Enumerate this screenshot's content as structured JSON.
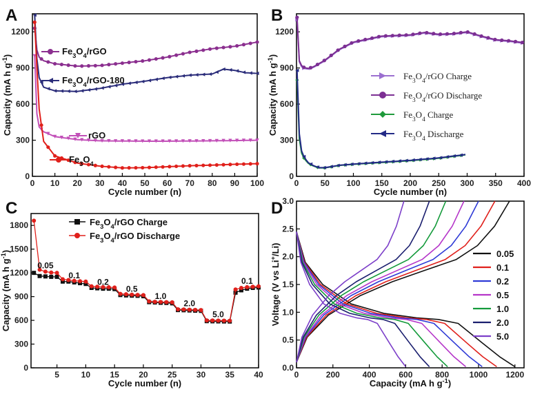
{
  "chart_data": [
    {
      "panel": "A",
      "type": "line",
      "xlabel": "Cycle number (n)",
      "ylabel": "Capacity (mA h g⁻¹)",
      "xlim": [
        0,
        100
      ],
      "ylim": [
        0,
        1350
      ],
      "xticks": [
        0,
        10,
        20,
        30,
        40,
        50,
        60,
        70,
        80,
        90,
        100
      ],
      "yticks": [
        0,
        300,
        600,
        900,
        1200
      ],
      "legend_placement": "inline labels",
      "series": [
        {
          "name": "Fe3O4/rGO",
          "color": "#8b2f8f",
          "marker": "circle",
          "points": [
            [
              1,
              1230
            ],
            [
              2,
              1050
            ],
            [
              3,
              990
            ],
            [
              5,
              960
            ],
            [
              10,
              935
            ],
            [
              20,
              915
            ],
            [
              30,
              920
            ],
            [
              40,
              940
            ],
            [
              50,
              960
            ],
            [
              60,
              990
            ],
            [
              70,
              1030
            ],
            [
              80,
              1060
            ],
            [
              90,
              1080
            ],
            [
              100,
              1115
            ]
          ]
        },
        {
          "name": "Fe3O4/rGO-180",
          "color": "#2b2d7a",
          "marker": "triangle-left",
          "points": [
            [
              1,
              1340
            ],
            [
              2,
              980
            ],
            [
              3,
              820
            ],
            [
              5,
              740
            ],
            [
              10,
              710
            ],
            [
              20,
              705
            ],
            [
              30,
              730
            ],
            [
              40,
              765
            ],
            [
              50,
              790
            ],
            [
              60,
              820
            ],
            [
              70,
              840
            ],
            [
              80,
              850
            ],
            [
              85,
              890
            ],
            [
              90,
              880
            ],
            [
              95,
              860
            ],
            [
              100,
              855
            ]
          ]
        },
        {
          "name": "rGO",
          "color": "#c24fb8",
          "marker": "triangle-down",
          "points": [
            [
              1,
              1000
            ],
            [
              2,
              520
            ],
            [
              3,
              410
            ],
            [
              5,
              370
            ],
            [
              10,
              330
            ],
            [
              20,
              305
            ],
            [
              30,
              295
            ],
            [
              40,
              293
            ],
            [
              50,
              292
            ],
            [
              60,
              292
            ],
            [
              70,
              293
            ],
            [
              80,
              295
            ],
            [
              90,
              297
            ],
            [
              100,
              300
            ]
          ]
        },
        {
          "name": "Fe3O4",
          "color": "#e0201b",
          "marker": "circle",
          "points": [
            [
              1,
              1280
            ],
            [
              2,
              900
            ],
            [
              3,
              560
            ],
            [
              5,
              290
            ],
            [
              10,
              170
            ],
            [
              20,
              110
            ],
            [
              30,
              85
            ],
            [
              40,
              70
            ],
            [
              50,
              72
            ],
            [
              60,
              80
            ],
            [
              70,
              88
            ],
            [
              80,
              93
            ],
            [
              90,
              100
            ],
            [
              100,
              105
            ]
          ]
        }
      ]
    },
    {
      "panel": "B",
      "type": "line",
      "xlabel": "Cycle number (n)",
      "ylabel": "Capacity (mA h g⁻¹)",
      "xlim": [
        0,
        400
      ],
      "ylim": [
        0,
        1350
      ],
      "xticks": [
        0,
        50,
        100,
        150,
        200,
        250,
        300,
        350,
        400
      ],
      "yticks": [
        0,
        300,
        600,
        900,
        1200
      ],
      "legend_placement": "center-right",
      "series": [
        {
          "name": "Fe3O4/rGO Charge",
          "color": "#9b6fd0",
          "marker": "triangle-right",
          "points": [
            [
              1,
              1300
            ],
            [
              5,
              950
            ],
            [
              10,
              900
            ],
            [
              20,
              890
            ],
            [
              30,
              905
            ],
            [
              50,
              960
            ],
            [
              75,
              1050
            ],
            [
              100,
              1110
            ],
            [
              130,
              1140
            ],
            [
              150,
              1160
            ],
            [
              175,
              1165
            ],
            [
              200,
              1170
            ],
            [
              225,
              1190
            ],
            [
              250,
              1175
            ],
            [
              275,
              1180
            ],
            [
              300,
              1195
            ],
            [
              325,
              1160
            ],
            [
              350,
              1130
            ],
            [
              375,
              1120
            ],
            [
              400,
              1105
            ]
          ]
        },
        {
          "name": "Fe3O4/rGO Discharge",
          "color": "#7c2f93",
          "marker": "circle",
          "points": [
            [
              1,
              1320
            ],
            [
              5,
              960
            ],
            [
              10,
              910
            ],
            [
              20,
              895
            ],
            [
              30,
              910
            ],
            [
              50,
              965
            ],
            [
              75,
              1055
            ],
            [
              100,
              1115
            ],
            [
              130,
              1145
            ],
            [
              150,
              1165
            ],
            [
              175,
              1170
            ],
            [
              200,
              1175
            ],
            [
              225,
              1195
            ],
            [
              250,
              1180
            ],
            [
              275,
              1185
            ],
            [
              300,
              1200
            ],
            [
              325,
              1165
            ],
            [
              350,
              1135
            ],
            [
              375,
              1125
            ],
            [
              400,
              1110
            ]
          ]
        },
        {
          "name": "Fe3O4 Charge",
          "color": "#1f9a3b",
          "marker": "diamond",
          "points": [
            [
              1,
              800
            ],
            [
              3,
              420
            ],
            [
              6,
              260
            ],
            [
              10,
              170
            ],
            [
              20,
              110
            ],
            [
              30,
              85
            ],
            [
              40,
              70
            ],
            [
              50,
              70
            ],
            [
              75,
              90
            ],
            [
              100,
              100
            ],
            [
              150,
              115
            ],
            [
              200,
              130
            ],
            [
              250,
              150
            ],
            [
              300,
              180
            ]
          ]
        },
        {
          "name": "Fe3O4 Discharge",
          "color": "#232a86",
          "marker": "triangle-left",
          "points": [
            [
              1,
              880
            ],
            [
              3,
              480
            ],
            [
              6,
              290
            ],
            [
              10,
              185
            ],
            [
              20,
              115
            ],
            [
              30,
              88
            ],
            [
              40,
              72
            ],
            [
              50,
              72
            ],
            [
              75,
              92
            ],
            [
              100,
              102
            ],
            [
              150,
              118
            ],
            [
              200,
              133
            ],
            [
              250,
              153
            ],
            [
              300,
              183
            ]
          ]
        }
      ]
    },
    {
      "panel": "C",
      "type": "line",
      "xlabel": "Cycle number (n)",
      "ylabel": "Capacity (mA h g⁻¹)",
      "xlim": [
        0.5,
        40
      ],
      "ylim": [
        0,
        1950
      ],
      "xticks": [
        5,
        10,
        15,
        20,
        25,
        30,
        35,
        40
      ],
      "yticks": [
        0,
        300,
        600,
        900,
        1200,
        1500,
        1800
      ],
      "legend_placement": "top-left",
      "rate_labels": [
        "0.05",
        "0.1",
        "0.2",
        "0.5",
        "1.0",
        "2.0",
        "5.0",
        "0.1"
      ],
      "series": [
        {
          "name": "Fe3O4/rGO Charge",
          "color": "#111111",
          "marker": "square",
          "values": [
            1200,
            1160,
            1155,
            1150,
            1150,
            1090,
            1090,
            1080,
            1070,
            1060,
            1010,
            1005,
            1000,
            1000,
            995,
            920,
            915,
            912,
            910,
            905,
            830,
            826,
            822,
            820,
            815,
            730,
            728,
            725,
            722,
            720,
            590,
            588,
            587,
            586,
            585,
            950,
            980,
            1000,
            1010,
            1015
          ]
        },
        {
          "name": "Fe3O4/rGO Discharge",
          "color": "#e0201b",
          "marker": "circle",
          "values": [
            1860,
            1240,
            1215,
            1205,
            1200,
            1120,
            1110,
            1100,
            1095,
            1090,
            1030,
            1025,
            1020,
            1018,
            1015,
            935,
            930,
            925,
            922,
            920,
            840,
            835,
            832,
            830,
            828,
            740,
            738,
            735,
            732,
            730,
            600,
            598,
            597,
            596,
            595,
            990,
            1010,
            1020,
            1025,
            1030
          ]
        }
      ]
    },
    {
      "panel": "D",
      "type": "line",
      "xlabel": "Capacity (mA h g⁻¹)",
      "ylabel": "Voltage (V vs Li⁺/Li)",
      "xlim": [
        0,
        1250
      ],
      "ylim": [
        0,
        3.0
      ],
      "xticks": [
        0,
        200,
        400,
        600,
        800,
        1000,
        1200
      ],
      "yticks": [
        0.0,
        0.5,
        1.0,
        1.5,
        2.0,
        2.5,
        3.0
      ],
      "legend_placement": "right",
      "series": [
        {
          "name": "0.05",
          "color": "#111111",
          "discharge_capacity": 1200,
          "charge_capacity": 1170
        },
        {
          "name": "0.1",
          "color": "#e0201b",
          "discharge_capacity": 1100,
          "charge_capacity": 1090
        },
        {
          "name": "0.2",
          "color": "#2e3ad6",
          "discharge_capacity": 1020,
          "charge_capacity": 1000
        },
        {
          "name": "0.5",
          "color": "#b535c9",
          "discharge_capacity": 930,
          "charge_capacity": 920
        },
        {
          "name": "1.0",
          "color": "#139a3a",
          "discharge_capacity": 830,
          "charge_capacity": 820
        },
        {
          "name": "2.0",
          "color": "#1a1e6e",
          "discharge_capacity": 730,
          "charge_capacity": 730
        },
        {
          "name": "5.0",
          "color": "#7c3fc9",
          "discharge_capacity": 600,
          "charge_capacity": 590
        }
      ]
    }
  ]
}
